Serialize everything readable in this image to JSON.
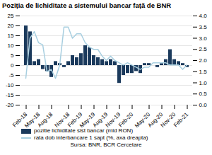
{
  "chart_data": {
    "type": "bar",
    "title": "Poziția de lichiditate a sistemului bancar față de BNR",
    "caption": "Sursa: BNR, BCR Cercetare",
    "categories": [
      "Feb-18",
      null,
      null,
      "May-18",
      null,
      null,
      "Aug-18",
      null,
      null,
      null,
      "Nov-18",
      null,
      null,
      "Feb-19",
      null,
      null,
      "May-19",
      null,
      null,
      "Aug-19",
      null,
      null,
      "Nov-19",
      null,
      null,
      "Feb-20",
      null,
      null,
      null,
      "May-20",
      null,
      null,
      "Aug-20",
      null,
      null,
      "Nov-20",
      null,
      null,
      "Feb-21"
    ],
    "series": [
      {
        "name": "pozitie lichiditate sist bancar (mld RON)",
        "type": "bar",
        "color": "#1b3a5c",
        "values": [
          20,
          17,
          2,
          3,
          -2,
          -3,
          -6,
          2,
          1,
          -1,
          2,
          5,
          4,
          6,
          10,
          9,
          5,
          4,
          3,
          2,
          3,
          2,
          -9,
          -5,
          -4,
          -4,
          -3,
          -4,
          1,
          1,
          0,
          -1,
          1,
          3,
          8,
          3,
          2,
          1,
          -1
        ]
      },
      {
        "name": "rata dob interbancare 1 sapt (%, axa dreapta)",
        "type": "line",
        "color": "#a8cfe0",
        "axis": "y2",
        "values": [
          1.2,
          3.0,
          3.3,
          2.8,
          2.7,
          1.5,
          1.6,
          1.2,
          1.8,
          3.5,
          3.5,
          3.0,
          3.2,
          3.2,
          2.8,
          2.6,
          2.5,
          2.5,
          2.2,
          2.0,
          2.2,
          2.0,
          1.9,
          1.8,
          1.9,
          1.8,
          1.7,
          1.6,
          1.7,
          1.7,
          1.9,
          1.9,
          1.9,
          1.9,
          1.8,
          1.8,
          1.8,
          1.6,
          1.8
        ]
      }
    ],
    "ylim": [
      -20,
      25
    ],
    "yticks": [
      -20,
      -15,
      -10,
      -5,
      0,
      5,
      10,
      15,
      20,
      25
    ],
    "y2lim": [
      0,
      4
    ],
    "y2ticks": [
      {
        "value": 0,
        "label": "0.0"
      },
      0.5,
      {
        "value": 1,
        "label": "1.0"
      },
      1.5,
      {
        "value": 2,
        "label": "2.0"
      },
      2.5,
      {
        "value": 3,
        "label": "3.0"
      },
      3.5,
      {
        "value": 4,
        "label": "4.0"
      }
    ],
    "grid": true,
    "legend": "bottom"
  }
}
